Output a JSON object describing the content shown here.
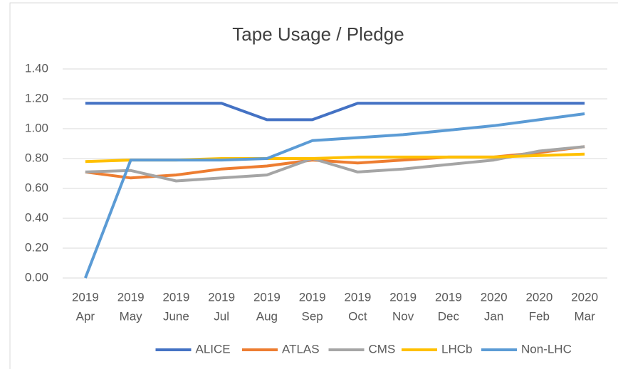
{
  "chart_data": {
    "type": "line",
    "title": "Tape Usage / Pledge",
    "categories": [
      [
        "2019",
        "Apr"
      ],
      [
        "2019",
        "May"
      ],
      [
        "2019",
        "June"
      ],
      [
        "2019",
        "Jul"
      ],
      [
        "2019",
        "Aug"
      ],
      [
        "2019",
        "Sep"
      ],
      [
        "2019",
        "Oct"
      ],
      [
        "2019",
        "Nov"
      ],
      [
        "2019",
        "Dec"
      ],
      [
        "2020",
        "Jan"
      ],
      [
        "2020",
        "Feb"
      ],
      [
        "2020",
        "Mar"
      ]
    ],
    "series": [
      {
        "name": "ALICE",
        "color": "#4472c4",
        "values": [
          1.17,
          1.17,
          1.17,
          1.17,
          1.06,
          1.06,
          1.17,
          1.17,
          1.17,
          1.17,
          1.17,
          1.17
        ]
      },
      {
        "name": "ATLAS",
        "color": "#ed7d31",
        "values": [
          0.71,
          0.67,
          0.69,
          0.73,
          0.75,
          0.79,
          0.77,
          0.79,
          0.81,
          0.81,
          0.84,
          0.88
        ]
      },
      {
        "name": "CMS",
        "color": "#a5a5a5",
        "values": [
          0.71,
          0.72,
          0.65,
          0.67,
          0.69,
          0.8,
          0.71,
          0.73,
          0.76,
          0.79,
          0.85,
          0.88
        ]
      },
      {
        "name": "LHCb",
        "color": "#ffc000",
        "values": [
          0.78,
          0.79,
          0.79,
          0.8,
          0.8,
          0.8,
          0.81,
          0.81,
          0.81,
          0.81,
          0.82,
          0.83
        ]
      },
      {
        "name": "Non-LHC",
        "color": "#5b9bd5",
        "values": [
          0.0,
          0.79,
          0.79,
          0.79,
          0.8,
          0.92,
          0.94,
          0.96,
          0.99,
          1.02,
          1.06,
          1.1
        ]
      }
    ],
    "ylim": [
      0,
      1.4
    ],
    "yticks": [
      {
        "value": 0,
        "label": "0.00"
      },
      {
        "value": 0.2,
        "label": "0.20"
      },
      {
        "value": 0.4,
        "label": "0.40"
      },
      {
        "value": 0.6,
        "label": "0.60"
      },
      {
        "value": 0.8,
        "label": "0.80"
      },
      {
        "value": 1.0,
        "label": "1.00"
      },
      {
        "value": 1.2,
        "label": "1.20"
      },
      {
        "value": 1.4,
        "label": "1.40"
      }
    ],
    "grid": true,
    "legend": "bottom"
  }
}
